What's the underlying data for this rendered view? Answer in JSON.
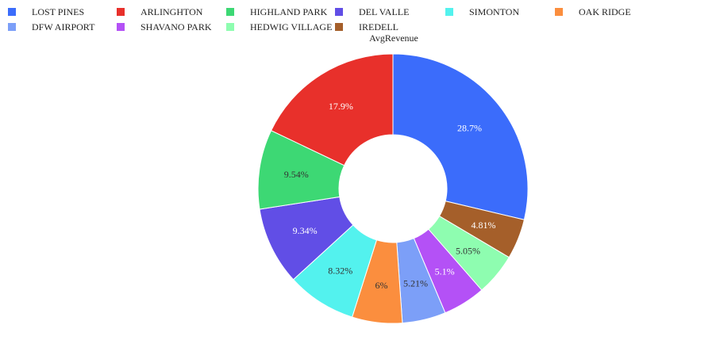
{
  "chart_data": {
    "type": "pie",
    "hole": true,
    "title": "AvgRevenue",
    "legend_position": "top",
    "slices": [
      {
        "label": "LOST PINES",
        "value": 28.7,
        "text": "28.7%",
        "color": "#3b6cfb",
        "text_color": "#ffffff"
      },
      {
        "label": "IREDELL",
        "value": 4.81,
        "text": "4.81%",
        "color": "#a55f2a",
        "text_color": "#ffffff"
      },
      {
        "label": "HEDWIG VILLAGE",
        "value": 5.05,
        "text": "5.05%",
        "color": "#8efdb0",
        "text_color": "#333333"
      },
      {
        "label": "SHAVANO PARK",
        "value": 5.1,
        "text": "5.1%",
        "color": "#b451f6",
        "text_color": "#ffffff"
      },
      {
        "label": "DFW AIRPORT",
        "value": 5.21,
        "text": "5.21%",
        "color": "#7c9ff8",
        "text_color": "#333333"
      },
      {
        "label": "OAK RIDGE",
        "value": 6.0,
        "text": "6%",
        "color": "#fb8e3e",
        "text_color": "#333333"
      },
      {
        "label": "SIMONTON",
        "value": 8.32,
        "text": "8.32%",
        "color": "#53f2ee",
        "text_color": "#333333"
      },
      {
        "label": "DEL VALLE",
        "value": 9.34,
        "text": "9.34%",
        "color": "#614ee6",
        "text_color": "#ffffff"
      },
      {
        "label": "HIGHLAND PARK",
        "value": 9.54,
        "text": "9.54%",
        "color": "#3dd874",
        "text_color": "#333333"
      },
      {
        "label": "ARLINGHTON",
        "value": 17.9,
        "text": "17.9%",
        "color": "#e8302b",
        "text_color": "#ffffff"
      }
    ],
    "legend": [
      {
        "label": "LOST PINES",
        "color": "#3b6cfb"
      },
      {
        "label": "ARLINGHTON",
        "color": "#e8302b"
      },
      {
        "label": "HIGHLAND PARK",
        "color": "#3dd874"
      },
      {
        "label": "DEL VALLE",
        "color": "#614ee6"
      },
      {
        "label": "SIMONTON",
        "color": "#53f2ee"
      },
      {
        "label": "OAK RIDGE",
        "color": "#fb8e3e"
      },
      {
        "label": "DFW AIRPORT",
        "color": "#7c9ff8"
      },
      {
        "label": "SHAVANO PARK",
        "color": "#b451f6"
      },
      {
        "label": "HEDWIG VILLAGE",
        "color": "#8efdb0"
      },
      {
        "label": "IREDELL",
        "color": "#a55f2a"
      }
    ]
  }
}
